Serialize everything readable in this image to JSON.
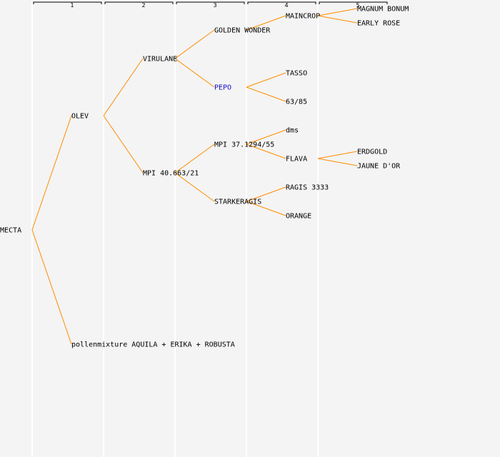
{
  "generations": [
    {
      "label": "1"
    },
    {
      "label": "2"
    },
    {
      "label": "3"
    },
    {
      "label": "4"
    },
    {
      "label": "5"
    }
  ],
  "nodes": [
    {
      "id": "mecta",
      "label": "MECTA",
      "gen": 0,
      "parent": null
    },
    {
      "id": "olev",
      "label": "OLEV",
      "gen": 1,
      "parent": "mecta"
    },
    {
      "id": "pollen",
      "label": "pollenmixture AQUILA + ERIKA + ROBUSTA",
      "gen": 1,
      "parent": "mecta"
    },
    {
      "id": "virulane",
      "label": "VIRULANE",
      "gen": 2,
      "parent": "olev"
    },
    {
      "id": "mpi40",
      "label": "MPI 40.663/21",
      "gen": 2,
      "parent": "olev"
    },
    {
      "id": "golden",
      "label": "GOLDEN WONDER",
      "gen": 3,
      "parent": "virulane"
    },
    {
      "id": "pepo",
      "label": "PEPO",
      "gen": 3,
      "parent": "virulane",
      "highlight": true
    },
    {
      "id": "mpi37",
      "label": "MPI 37.1294/55",
      "gen": 3,
      "parent": "mpi40"
    },
    {
      "id": "starker",
      "label": "STARKERAGIS",
      "gen": 3,
      "parent": "mpi40"
    },
    {
      "id": "maincrop",
      "label": "MAINCROP",
      "gen": 4,
      "parent": "golden"
    },
    {
      "id": "tasso",
      "label": "TASSO",
      "gen": 4,
      "parent": "pepo"
    },
    {
      "id": "n6385",
      "label": "63/85",
      "gen": 4,
      "parent": "pepo"
    },
    {
      "id": "dms",
      "label": "dms",
      "gen": 4,
      "parent": "mpi37"
    },
    {
      "id": "flava",
      "label": "FLAVA",
      "gen": 4,
      "parent": "mpi37"
    },
    {
      "id": "ragis",
      "label": "RAGIS 3333",
      "gen": 4,
      "parent": "starker"
    },
    {
      "id": "orange",
      "label": "ORANGE",
      "gen": 4,
      "parent": "starker"
    },
    {
      "id": "magnum",
      "label": "MAGNUM BONUM",
      "gen": 5,
      "parent": "maincrop"
    },
    {
      "id": "early",
      "label": "EARLY ROSE",
      "gen": 5,
      "parent": "maincrop"
    },
    {
      "id": "erdgold",
      "label": "ERDGOLD",
      "gen": 5,
      "parent": "flava"
    },
    {
      "id": "jaune",
      "label": "JAUNE D'OR",
      "gen": 5,
      "parent": "flava"
    }
  ],
  "colors": {
    "edge": "#ff8c00",
    "highlight": "#1010c8",
    "background": "#f4f4f4",
    "column_separator": "#ffffff"
  }
}
